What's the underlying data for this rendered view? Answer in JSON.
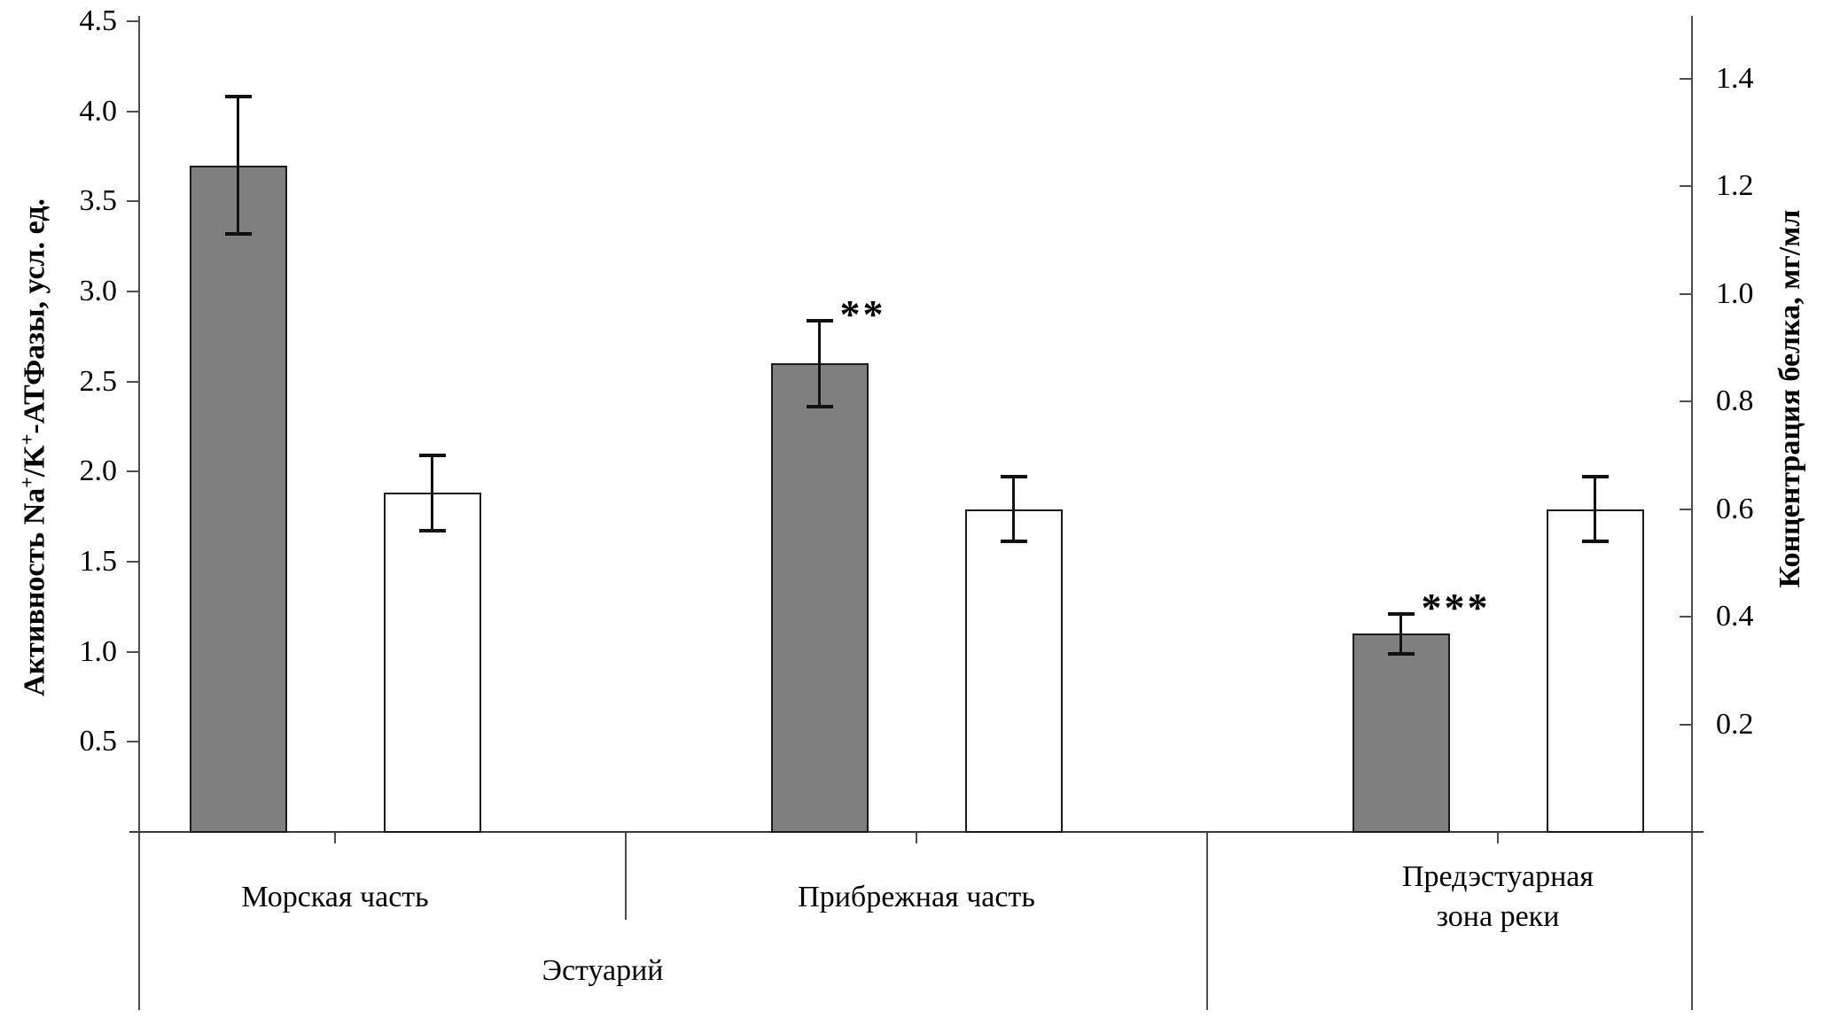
{
  "figure": {
    "background": "#ffffff",
    "left_axis": {
      "title_plain": "Активность Na+/K+-АТФазы, усл. ед.",
      "title_segments": [
        {
          "text": "Активность Na"
        },
        {
          "sup": "+"
        },
        {
          "text": "/K"
        },
        {
          "sup": "+"
        },
        {
          "text": "-АТФазы, усл. ед."
        }
      ],
      "tick_labels": [
        "0.5",
        "1.0",
        "1.5",
        "2.0",
        "2.5",
        "3.0",
        "3.5",
        "4.0",
        "4.5"
      ]
    },
    "right_axis": {
      "title": "Концентрация белка, мг/мл",
      "tick_labels": [
        "0.2",
        "0.4",
        "0.6",
        "0.8",
        "1.0",
        "1.2",
        "1.4"
      ]
    }
  },
  "chart_data": {
    "type": "bar",
    "categories": [
      "Морская часть",
      "Прибрежная часть",
      "Предэстуарная зона реки"
    ],
    "category_label_lines": [
      [
        "Морская часть"
      ],
      [
        "Прибрежная часть"
      ],
      [
        "Предэстуарная",
        "зона реки"
      ]
    ],
    "group_label": "Эстуарий",
    "group_label_spans_categories": [
      "Морская часть",
      "Прибрежная часть"
    ],
    "series": [
      {
        "name": "Активность Na+/K+-АТФазы, усл. ед.",
        "axis": "left",
        "fill": "#7f7f7f",
        "values": [
          3.7,
          2.6,
          1.1
        ],
        "errors": [
          0.38,
          0.24,
          0.11
        ],
        "annotations": [
          "",
          "**",
          "***"
        ]
      },
      {
        "name": "Концентрация белка, мг/мл",
        "axis": "right",
        "fill": "#ffffff",
        "values": [
          0.63,
          0.6,
          0.6
        ],
        "errors": [
          0.07,
          0.06,
          0.06
        ],
        "annotations": [
          "",
          "",
          ""
        ]
      }
    ],
    "left_ticks": [
      0.5,
      1.0,
      1.5,
      2.0,
      2.5,
      3.0,
      3.5,
      4.0,
      4.5
    ],
    "right_ticks": [
      0.2,
      0.4,
      0.6,
      0.8,
      1.0,
      1.2,
      1.4
    ],
    "left_axis_range": [
      0,
      4.52
    ],
    "right_axis_range": [
      0,
      1.513
    ],
    "ylabel_left": "Активность Na+/K+-АТФазы, усл. ед.",
    "ylabel_right": "Концентрация белка, мг/мл",
    "grid": false,
    "legend": false
  },
  "colors": {
    "bar_gray": "#7f7f7f",
    "bar_white": "#ffffff",
    "bar_border": "#1a1a1a",
    "axis_line": "#4d4d4d",
    "error_bar": "#111111",
    "text": "#000000"
  }
}
